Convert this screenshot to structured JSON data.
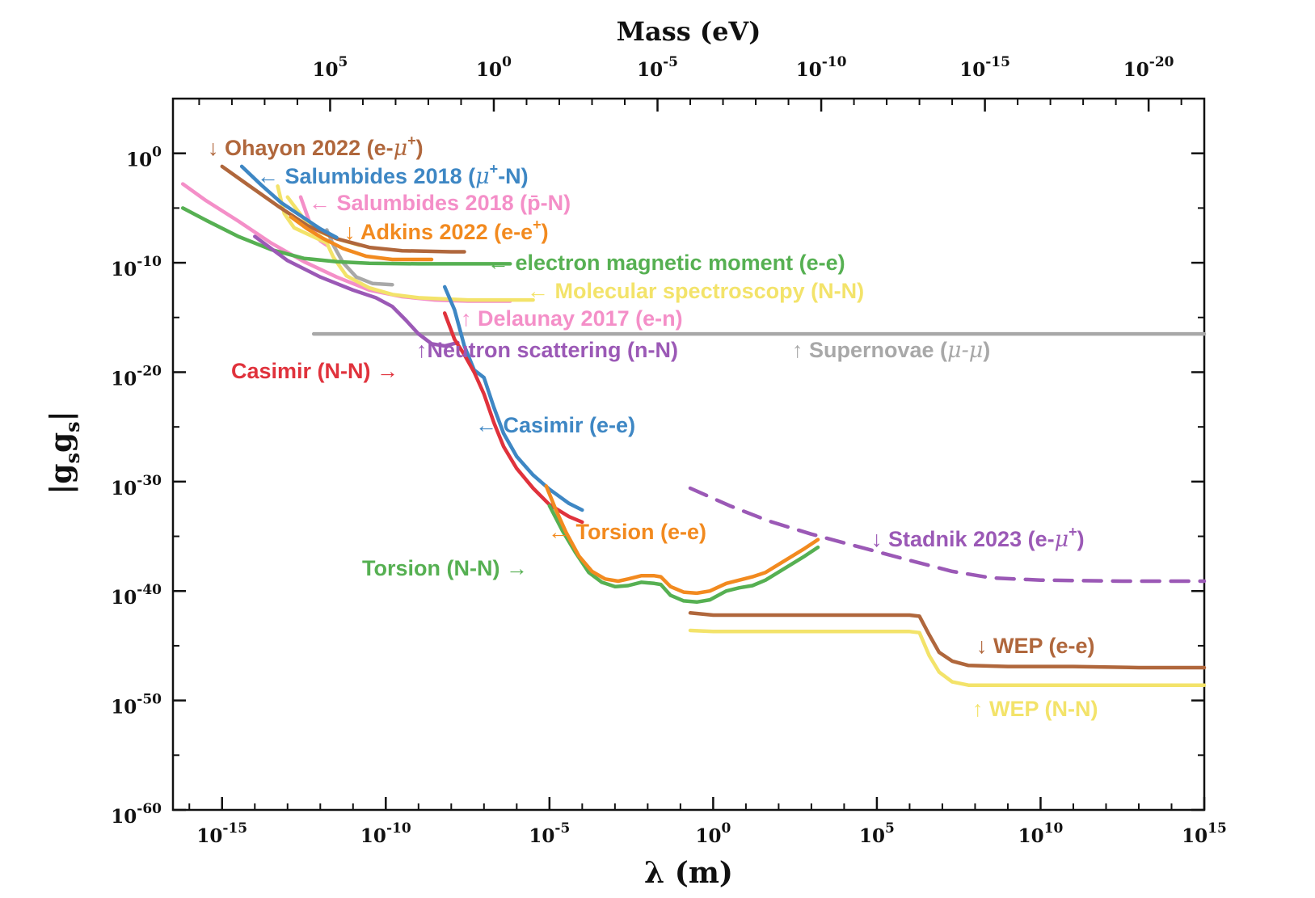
{
  "chart_data": {
    "type": "line",
    "title": "",
    "xlabel": "λ (m)",
    "ylabel": "|g_s g_s|",
    "top_xlabel": "Mass (eV)",
    "x_scale": "log10",
    "y_scale": "log10",
    "xlim_log10": [
      -16.5,
      15
    ],
    "ylim_log10": [
      -60,
      5
    ],
    "x_ticks": [
      {
        "label": "10",
        "exp": "-15",
        "v": -15
      },
      {
        "label": "10",
        "exp": "-10",
        "v": -10
      },
      {
        "label": "10",
        "exp": "-5",
        "v": -5
      },
      {
        "label": "10",
        "exp": "0",
        "v": 0
      },
      {
        "label": "10",
        "exp": "5",
        "v": 5
      },
      {
        "label": "10",
        "exp": "10",
        "v": 10
      },
      {
        "label": "10",
        "exp": "15",
        "v": 15
      }
    ],
    "top_ticks": [
      {
        "label": "10",
        "exp": "5",
        "v": -11.7
      },
      {
        "label": "10",
        "exp": "0",
        "v": -6.7
      },
      {
        "label": "10",
        "exp": "-5",
        "v": -1.7
      },
      {
        "label": "10",
        "exp": "-10",
        "v": 3.3
      },
      {
        "label": "10",
        "exp": "-15",
        "v": 8.3
      },
      {
        "label": "10",
        "exp": "-20",
        "v": 13.3
      }
    ],
    "y_ticks": [
      {
        "label": "10",
        "exp": "0",
        "v": 0
      },
      {
        "label": "10",
        "exp": "-10",
        "v": -10
      },
      {
        "label": "10",
        "exp": "-20",
        "v": -20
      },
      {
        "label": "10",
        "exp": "-30",
        "v": -30
      },
      {
        "label": "10",
        "exp": "-40",
        "v": -40
      },
      {
        "label": "10",
        "exp": "-50",
        "v": -50
      },
      {
        "label": "10",
        "exp": "-60",
        "v": -60
      }
    ],
    "series": [
      {
        "name": "Supernovae (μ-μ)",
        "color": "#a8a8a8",
        "dash": false,
        "points": [
          [
            -12.2,
            -16.5
          ],
          [
            15,
            -16.5
          ]
        ]
      },
      {
        "name": "Salumbides 2018 (p̄-N)",
        "color": "#f48fc8",
        "dash": false,
        "points": [
          [
            -16.2,
            -2.8
          ],
          [
            -15.5,
            -4.3
          ],
          [
            -14.5,
            -6.2
          ],
          [
            -13.5,
            -8.2
          ],
          [
            -12.5,
            -9.9
          ],
          [
            -11.5,
            -11.3
          ],
          [
            -10.5,
            -12.5
          ],
          [
            -9.5,
            -13.1
          ],
          [
            -8.5,
            -13.4
          ],
          [
            -7.5,
            -13.5
          ],
          [
            -6.2,
            -13.5
          ]
        ]
      },
      {
        "name": "Salumbides 2018 (p̄-N) steep",
        "color": "#f48fc8",
        "dash": false,
        "points": [
          [
            -12.6,
            -4.0
          ],
          [
            -12.3,
            -6.5
          ],
          [
            -12.0,
            -8.0
          ],
          [
            -11.8,
            -8.4
          ]
        ]
      },
      {
        "name": "Molecular spectroscopy (N-N)",
        "color": "#f3e36a",
        "dash": false,
        "points": [
          [
            -13.3,
            -3.0
          ],
          [
            -13.1,
            -5.5
          ],
          [
            -12.8,
            -6.8
          ],
          [
            -12.3,
            -7.5
          ],
          [
            -11.8,
            -8.2
          ],
          [
            -11.6,
            -9.5
          ],
          [
            -11.2,
            -11.2
          ],
          [
            -10.5,
            -12.3
          ],
          [
            -9.8,
            -12.9
          ],
          [
            -9.0,
            -13.2
          ],
          [
            -7.5,
            -13.4
          ],
          [
            -5.5,
            -13.4
          ]
        ]
      },
      {
        "name": "Molecular spectroscopy (N-N) upper",
        "color": "#f3e36a",
        "dash": false,
        "points": [
          [
            -13.0,
            -4.0
          ],
          [
            -12.5,
            -6.0
          ],
          [
            -12.0,
            -7.2
          ],
          [
            -11.5,
            -7.8
          ],
          [
            -10.8,
            -8.4
          ]
        ]
      },
      {
        "name": "grey short",
        "color": "#a8a8a8",
        "dash": false,
        "points": [
          [
            -11.8,
            -7.0
          ],
          [
            -11.6,
            -8.4
          ],
          [
            -11.3,
            -10.0
          ],
          [
            -10.9,
            -11.3
          ],
          [
            -10.4,
            -11.9
          ],
          [
            -9.8,
            -12.0
          ]
        ]
      },
      {
        "name": "electron magnetic moment (e-e)",
        "color": "#56b052",
        "dash": false,
        "points": [
          [
            -16.2,
            -5.0
          ],
          [
            -15.5,
            -6.1
          ],
          [
            -14.5,
            -7.6
          ],
          [
            -13.5,
            -8.8
          ],
          [
            -12.5,
            -9.6
          ],
          [
            -11.5,
            -9.9
          ],
          [
            -10.5,
            -10.05
          ],
          [
            -9,
            -10.1
          ],
          [
            -6.2,
            -10.1
          ]
        ]
      },
      {
        "name": "Neutron scattering (n-N)",
        "color": "#9b59b6",
        "dash": false,
        "points": [
          [
            -14.0,
            -7.6
          ],
          [
            -13.0,
            -9.8
          ],
          [
            -12.0,
            -11.3
          ],
          [
            -11.0,
            -12.5
          ],
          [
            -10.3,
            -13.2
          ],
          [
            -9.8,
            -14.0
          ],
          [
            -9.4,
            -15.2
          ],
          [
            -9.0,
            -16.5
          ],
          [
            -8.6,
            -17.4
          ],
          [
            -8.2,
            -17.6
          ],
          [
            -7.8,
            -17.3
          ]
        ]
      },
      {
        "name": "Ohayon 2022 (e-μ+)",
        "color": "#b0673c",
        "dash": false,
        "points": [
          [
            -15.0,
            -1.2
          ],
          [
            -14.2,
            -2.9
          ],
          [
            -13.3,
            -4.8
          ],
          [
            -12.4,
            -6.6
          ],
          [
            -11.5,
            -7.8
          ],
          [
            -10.5,
            -8.6
          ],
          [
            -9.5,
            -8.9
          ],
          [
            -8.0,
            -9.0
          ],
          [
            -7.6,
            -9.0
          ]
        ]
      },
      {
        "name": "Salumbides 2018 (μ+-N)",
        "color": "#3e87c4",
        "dash": false,
        "points": [
          [
            -14.4,
            -1.2
          ],
          [
            -13.8,
            -2.9
          ],
          [
            -13.2,
            -4.5
          ],
          [
            -12.6,
            -5.7
          ],
          [
            -12.0,
            -6.9
          ],
          [
            -11.5,
            -7.7
          ]
        ]
      },
      {
        "name": "Adkins 2022 (e-e+)",
        "color": "#f28a1f",
        "dash": false,
        "points": [
          [
            -12.9,
            -5.8
          ],
          [
            -12.4,
            -6.9
          ],
          [
            -11.9,
            -7.8
          ],
          [
            -11.3,
            -8.7
          ],
          [
            -10.6,
            -9.4
          ],
          [
            -9.8,
            -9.7
          ],
          [
            -8.6,
            -9.7
          ]
        ]
      },
      {
        "name": "Casimir (e-e)",
        "color": "#3e87c4",
        "dash": false,
        "points": [
          [
            -8.2,
            -12.2
          ],
          [
            -7.9,
            -14.3
          ],
          [
            -7.6,
            -17.6
          ],
          [
            -7.3,
            -19.8
          ],
          [
            -7.0,
            -20.5
          ],
          [
            -6.7,
            -23.2
          ],
          [
            -6.4,
            -25.6
          ],
          [
            -6.0,
            -27.7
          ],
          [
            -5.5,
            -29.4
          ],
          [
            -5.0,
            -30.7
          ],
          [
            -4.4,
            -32.0
          ],
          [
            -4.0,
            -32.6
          ]
        ]
      },
      {
        "name": "Casimir (N-N)",
        "color": "#e0323c",
        "dash": false,
        "points": [
          [
            -8.2,
            -14.6
          ],
          [
            -7.9,
            -17.0
          ],
          [
            -7.6,
            -18.4
          ],
          [
            -7.3,
            -20.0
          ],
          [
            -7.0,
            -22.0
          ],
          [
            -6.7,
            -24.6
          ],
          [
            -6.4,
            -26.8
          ],
          [
            -6.0,
            -28.8
          ],
          [
            -5.5,
            -30.6
          ],
          [
            -5.0,
            -32.1
          ],
          [
            -4.4,
            -33.2
          ],
          [
            -4.0,
            -33.7
          ]
        ]
      },
      {
        "name": "Torsion (N-N)",
        "color": "#56b052",
        "dash": false,
        "points": [
          [
            -5.0,
            -32.2
          ],
          [
            -4.6,
            -34.5
          ],
          [
            -4.2,
            -36.5
          ],
          [
            -3.8,
            -38.3
          ],
          [
            -3.4,
            -39.2
          ],
          [
            -3.0,
            -39.6
          ],
          [
            -2.6,
            -39.5
          ],
          [
            -2.2,
            -39.2
          ],
          [
            -1.8,
            -39.3
          ],
          [
            -1.6,
            -39.4
          ],
          [
            -1.3,
            -40.4
          ],
          [
            -0.9,
            -40.9
          ],
          [
            -0.5,
            -41.0
          ],
          [
            -0.1,
            -40.8
          ],
          [
            0.4,
            -40.0
          ],
          [
            0.8,
            -39.7
          ],
          [
            1.2,
            -39.5
          ],
          [
            1.6,
            -39.0
          ],
          [
            2.2,
            -37.9
          ],
          [
            2.8,
            -36.8
          ],
          [
            3.2,
            -36.0
          ]
        ]
      },
      {
        "name": "Torsion (e-e)",
        "color": "#f28a1f",
        "dash": false,
        "points": [
          [
            -5.1,
            -30.4
          ],
          [
            -4.8,
            -32.6
          ],
          [
            -4.5,
            -34.6
          ],
          [
            -4.1,
            -36.8
          ],
          [
            -3.7,
            -38.2
          ],
          [
            -3.3,
            -38.9
          ],
          [
            -2.9,
            -39.1
          ],
          [
            -2.6,
            -38.9
          ],
          [
            -2.2,
            -38.6
          ],
          [
            -1.8,
            -38.6
          ],
          [
            -1.6,
            -38.7
          ],
          [
            -1.3,
            -39.6
          ],
          [
            -0.9,
            -40.1
          ],
          [
            -0.5,
            -40.2
          ],
          [
            -0.1,
            -40.0
          ],
          [
            0.4,
            -39.3
          ],
          [
            0.8,
            -39.0
          ],
          [
            1.2,
            -38.7
          ],
          [
            1.6,
            -38.3
          ],
          [
            2.2,
            -37.2
          ],
          [
            2.8,
            -36.1
          ],
          [
            3.2,
            -35.3
          ]
        ]
      },
      {
        "name": "Stadnik 2023 (e-μ+)",
        "color": "#9b59b6",
        "dash": true,
        "points": [
          [
            -0.7,
            -30.6
          ],
          [
            0.5,
            -32.2
          ],
          [
            1.7,
            -33.6
          ],
          [
            3.0,
            -34.8
          ],
          [
            4.5,
            -36.0
          ],
          [
            6.0,
            -37.2
          ],
          [
            7.3,
            -38.2
          ],
          [
            8.5,
            -38.8
          ],
          [
            10,
            -39.0
          ],
          [
            12.5,
            -39.1
          ],
          [
            15,
            -39.1
          ]
        ]
      },
      {
        "name": "WEP (e-e)",
        "color": "#b0673c",
        "dash": false,
        "points": [
          [
            -0.7,
            -42.0
          ],
          [
            0,
            -42.2
          ],
          [
            3,
            -42.2
          ],
          [
            6.0,
            -42.2
          ],
          [
            6.3,
            -42.3
          ],
          [
            6.6,
            -44.0
          ],
          [
            6.9,
            -45.6
          ],
          [
            7.3,
            -46.4
          ],
          [
            7.8,
            -46.8
          ],
          [
            9,
            -46.9
          ],
          [
            11,
            -46.9
          ],
          [
            13,
            -47.0
          ],
          [
            15,
            -47.0
          ]
        ]
      },
      {
        "name": "WEP (N-N)",
        "color": "#f3e36a",
        "dash": false,
        "points": [
          [
            -0.7,
            -43.6
          ],
          [
            0,
            -43.7
          ],
          [
            3,
            -43.7
          ],
          [
            6.0,
            -43.7
          ],
          [
            6.3,
            -43.8
          ],
          [
            6.6,
            -45.9
          ],
          [
            6.9,
            -47.4
          ],
          [
            7.3,
            -48.3
          ],
          [
            7.8,
            -48.6
          ],
          [
            9,
            -48.6
          ],
          [
            11,
            -48.6
          ],
          [
            13,
            -48.6
          ],
          [
            15,
            -48.6
          ]
        ]
      }
    ],
    "annotations": [
      {
        "key": "ohayon",
        "arrow": "↓ ",
        "text": "Ohayon 2022 (e-",
        "italic": "μ",
        "sup": "+",
        "tail": ")",
        "color": "#b0673c"
      },
      {
        "key": "salumbides_mu",
        "arrow": "← ",
        "text": "Salumbides 2018  (",
        "italic": "μ",
        "sup": "+",
        "tail": "-N)",
        "color": "#3e87c4"
      },
      {
        "key": "salumbides_p",
        "arrow": "← ",
        "text": "Salumbides 2018 (p̄-N)",
        "italic": "",
        "sup": "",
        "tail": "",
        "color": "#f48fc8"
      },
      {
        "key": "adkins",
        "arrow": "↓ ",
        "text": "Adkins 2022 (e-e",
        "italic": "",
        "sup": "+",
        "tail": ")",
        "color": "#f28a1f"
      },
      {
        "key": "emm",
        "arrow": "← ",
        "text": "electron magnetic moment (e-e)",
        "italic": "",
        "sup": "",
        "tail": "",
        "color": "#56b052"
      },
      {
        "key": "molspec",
        "arrow": "← ",
        "text": "Molecular spectroscopy (N-N)",
        "italic": "",
        "sup": "",
        "tail": "",
        "color": "#f3e36a"
      },
      {
        "key": "delaunay",
        "arrow": "↑ ",
        "text": "Delaunay 2017 (e-n)",
        "italic": "",
        "sup": "",
        "tail": "",
        "color": "#f48fc8"
      },
      {
        "key": "neutron",
        "arrow": "↑",
        "text": "Neutron scattering (n-N)",
        "italic": "",
        "sup": "",
        "tail": "",
        "color": "#9b59b6"
      },
      {
        "key": "supernovae",
        "arrow": "↑ ",
        "text": "Supernovae (",
        "italic": "μ-μ",
        "sup": "",
        "tail": ")",
        "color": "#a8a8a8"
      },
      {
        "key": "casimir_nn",
        "arrow": "",
        "text": "Casimir (N-N)",
        "italic": "",
        "sup": "",
        "tail": " →",
        "color": "#e0323c"
      },
      {
        "key": "casimir_ee",
        "arrow": "← ",
        "text": "Casimir (e-e)",
        "italic": "",
        "sup": "",
        "tail": "",
        "color": "#3e87c4"
      },
      {
        "key": "torsion_ee",
        "arrow": "← ",
        "text": "Torsion (e-e)",
        "italic": "",
        "sup": "",
        "tail": "",
        "color": "#f28a1f"
      },
      {
        "key": "torsion_nn",
        "arrow": "",
        "text": "Torsion (N-N)",
        "italic": "",
        "sup": "",
        "tail": " →",
        "color": "#56b052"
      },
      {
        "key": "stadnik",
        "arrow": "↓ ",
        "text": "Stadnik 2023 (e-",
        "italic": "μ",
        "sup": "+",
        "tail": ")",
        "color": "#9b59b6"
      },
      {
        "key": "wep_ee",
        "arrow": "↓ ",
        "text": "WEP (e-e)",
        "italic": "",
        "sup": "",
        "tail": "",
        "color": "#b0673c"
      },
      {
        "key": "wep_nn",
        "arrow": "↑ ",
        "text": "WEP (N-N)",
        "italic": "",
        "sup": "",
        "tail": "",
        "color": "#f3e36a"
      }
    ]
  }
}
